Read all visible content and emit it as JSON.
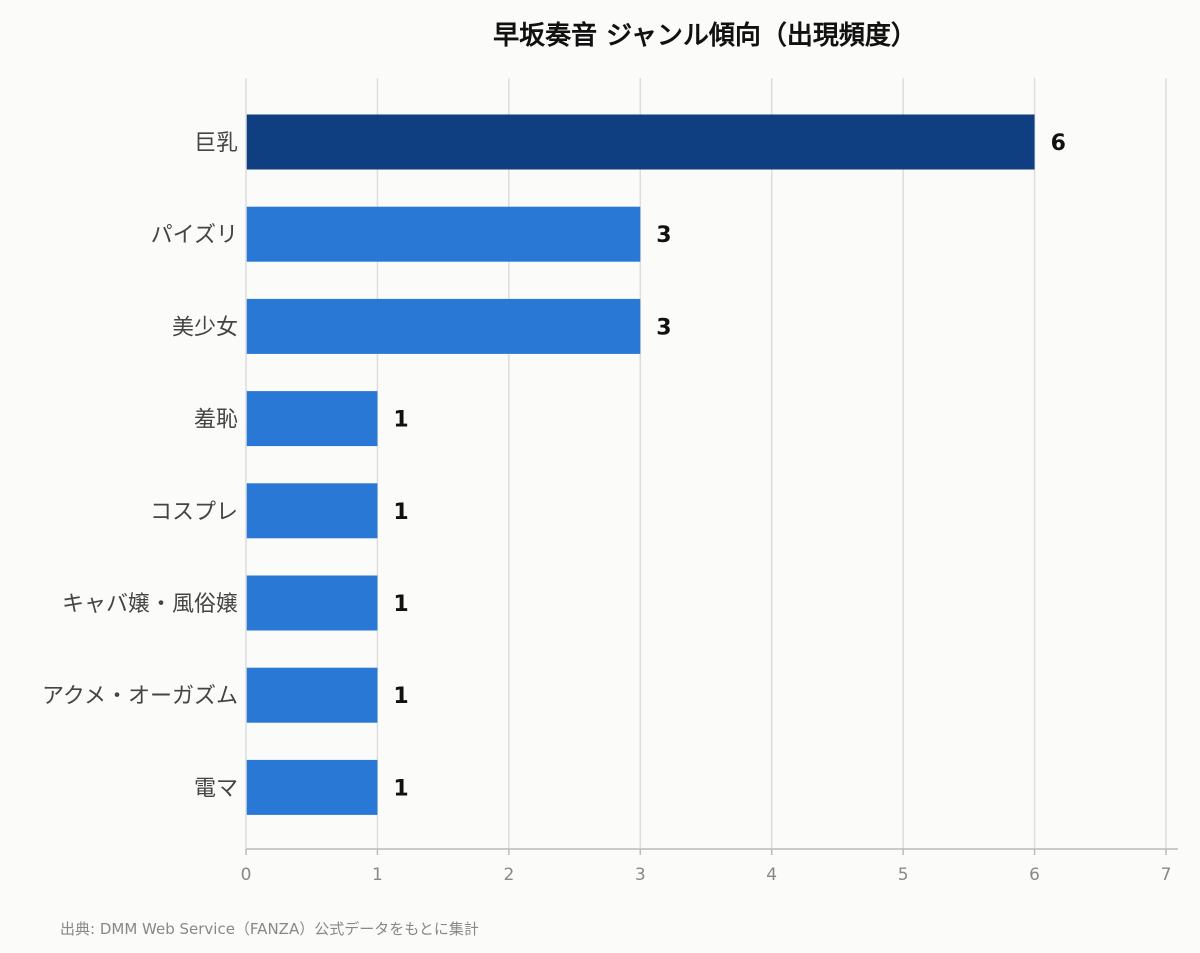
{
  "chart_data": {
    "type": "bar",
    "orientation": "horizontal",
    "title": "早坂奏音 ジャンル傾向（出現頻度）",
    "xlabel": "",
    "ylabel": "",
    "categories": [
      "巨乳",
      "パイズリ",
      "美少女",
      "羞恥",
      "コスプレ",
      "キャバ嬢・風俗嬢",
      "アクメ・オーガズム",
      "電マ"
    ],
    "values": [
      6,
      3,
      3,
      1,
      1,
      1,
      1,
      1
    ],
    "xlim": [
      0,
      7
    ],
    "x_ticks": [
      0,
      1,
      2,
      3,
      4,
      5,
      6,
      7
    ],
    "grid": true,
    "highlight_index": 0,
    "colors": {
      "bar": "#2a78d6",
      "highlight": "#0f3f80",
      "grid": "#dddddd",
      "axis": "#bbbbbb"
    }
  },
  "footnote": "出典: DMM Web Service（FANZA）公式データをもとに集計"
}
